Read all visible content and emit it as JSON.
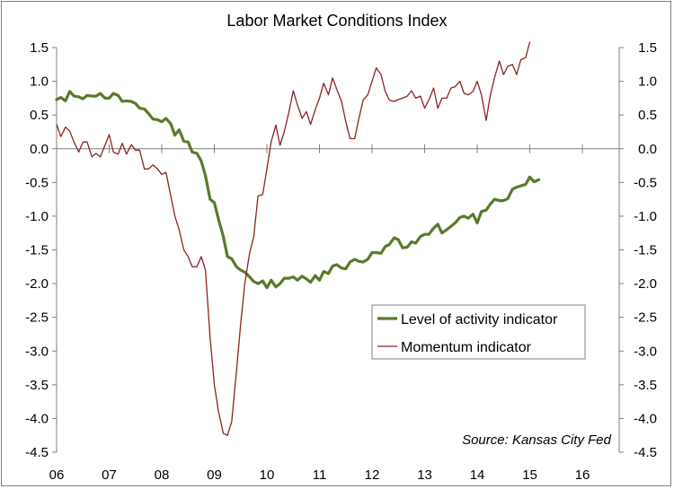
{
  "chart_data": {
    "type": "line",
    "title": "Labor Market Conditions Index",
    "source_note": "Source: Kansas City Fed",
    "xlabel": "",
    "ylabel": "",
    "ylim": [
      -4.5,
      1.5
    ],
    "y_ticks": [
      "1.5",
      "1.0",
      "0.5",
      "0.0",
      "-0.5",
      "-1.0",
      "-1.5",
      "-2.0",
      "-2.5",
      "-3.0",
      "-3.5",
      "-4.0",
      "-4.5"
    ],
    "x_ticks": [
      "06",
      "07",
      "08",
      "09",
      "10",
      "11",
      "12",
      "13",
      "14",
      "15",
      "16"
    ],
    "xlim": [
      2006,
      2016.7
    ],
    "grid": false,
    "legend_position": "lower-right",
    "series": [
      {
        "name": "Level of activity indicator",
        "color": "#5a7a2a",
        "points": [
          [
            2006.0,
            0.73
          ],
          [
            2006.08,
            0.76
          ],
          [
            2006.17,
            0.71
          ],
          [
            2006.25,
            0.85
          ],
          [
            2006.33,
            0.78
          ],
          [
            2006.42,
            0.77
          ],
          [
            2006.5,
            0.74
          ],
          [
            2006.58,
            0.79
          ],
          [
            2006.67,
            0.78
          ],
          [
            2006.75,
            0.78
          ],
          [
            2006.83,
            0.82
          ],
          [
            2006.92,
            0.75
          ],
          [
            2007.0,
            0.75
          ],
          [
            2007.08,
            0.82
          ],
          [
            2007.17,
            0.79
          ],
          [
            2007.25,
            0.7
          ],
          [
            2007.33,
            0.71
          ],
          [
            2007.42,
            0.7
          ],
          [
            2007.5,
            0.67
          ],
          [
            2007.58,
            0.6
          ],
          [
            2007.67,
            0.59
          ],
          [
            2007.75,
            0.52
          ],
          [
            2007.83,
            0.44
          ],
          [
            2007.92,
            0.43
          ],
          [
            2008.0,
            0.4
          ],
          [
            2008.08,
            0.45
          ],
          [
            2008.17,
            0.37
          ],
          [
            2008.25,
            0.2
          ],
          [
            2008.33,
            0.28
          ],
          [
            2008.42,
            0.11
          ],
          [
            2008.5,
            0.1
          ],
          [
            2008.58,
            -0.05
          ],
          [
            2008.67,
            -0.07
          ],
          [
            2008.75,
            -0.18
          ],
          [
            2008.83,
            -0.4
          ],
          [
            2008.92,
            -0.75
          ],
          [
            2009.0,
            -0.8
          ],
          [
            2009.08,
            -1.05
          ],
          [
            2009.17,
            -1.3
          ],
          [
            2009.25,
            -1.6
          ],
          [
            2009.33,
            -1.63
          ],
          [
            2009.42,
            -1.75
          ],
          [
            2009.5,
            -1.8
          ],
          [
            2009.58,
            -1.83
          ],
          [
            2009.67,
            -1.9
          ],
          [
            2009.75,
            -1.97
          ],
          [
            2009.83,
            -2.0
          ],
          [
            2009.92,
            -1.96
          ],
          [
            2010.0,
            -2.06
          ],
          [
            2010.08,
            -1.95
          ],
          [
            2010.17,
            -2.05
          ],
          [
            2010.25,
            -2.0
          ],
          [
            2010.33,
            -1.92
          ],
          [
            2010.42,
            -1.92
          ],
          [
            2010.5,
            -1.9
          ],
          [
            2010.58,
            -1.95
          ],
          [
            2010.67,
            -1.89
          ],
          [
            2010.75,
            -1.93
          ],
          [
            2010.83,
            -1.98
          ],
          [
            2010.92,
            -1.88
          ],
          [
            2011.0,
            -1.95
          ],
          [
            2011.08,
            -1.82
          ],
          [
            2011.17,
            -1.85
          ],
          [
            2011.25,
            -1.74
          ],
          [
            2011.33,
            -1.72
          ],
          [
            2011.42,
            -1.77
          ],
          [
            2011.5,
            -1.78
          ],
          [
            2011.58,
            -1.68
          ],
          [
            2011.67,
            -1.64
          ],
          [
            2011.75,
            -1.67
          ],
          [
            2011.83,
            -1.68
          ],
          [
            2011.92,
            -1.64
          ],
          [
            2012.0,
            -1.54
          ],
          [
            2012.08,
            -1.54
          ],
          [
            2012.17,
            -1.55
          ],
          [
            2012.25,
            -1.45
          ],
          [
            2012.33,
            -1.42
          ],
          [
            2012.42,
            -1.32
          ],
          [
            2012.5,
            -1.35
          ],
          [
            2012.58,
            -1.47
          ],
          [
            2012.67,
            -1.46
          ],
          [
            2012.75,
            -1.38
          ],
          [
            2012.83,
            -1.4
          ],
          [
            2012.92,
            -1.3
          ],
          [
            2013.0,
            -1.27
          ],
          [
            2013.08,
            -1.27
          ],
          [
            2013.17,
            -1.18
          ],
          [
            2013.25,
            -1.12
          ],
          [
            2013.33,
            -1.25
          ],
          [
            2013.42,
            -1.2
          ],
          [
            2013.5,
            -1.15
          ],
          [
            2013.58,
            -1.1
          ],
          [
            2013.67,
            -1.02
          ],
          [
            2013.75,
            -1.0
          ],
          [
            2013.83,
            -1.03
          ],
          [
            2013.92,
            -0.97
          ],
          [
            2014.0,
            -1.1
          ],
          [
            2014.08,
            -0.93
          ],
          [
            2014.17,
            -0.91
          ],
          [
            2014.25,
            -0.82
          ],
          [
            2014.33,
            -0.75
          ],
          [
            2014.42,
            -0.77
          ],
          [
            2014.5,
            -0.77
          ],
          [
            2014.58,
            -0.74
          ],
          [
            2014.67,
            -0.6
          ],
          [
            2014.75,
            -0.57
          ],
          [
            2014.83,
            -0.55
          ],
          [
            2014.92,
            -0.53
          ],
          [
            2015.0,
            -0.42
          ],
          [
            2015.08,
            -0.49
          ],
          [
            2015.17,
            -0.46
          ]
        ]
      },
      {
        "name": "Momentum indicator",
        "color": "#8b2323",
        "points": [
          [
            2006.0,
            0.36
          ],
          [
            2006.08,
            0.18
          ],
          [
            2006.17,
            0.32
          ],
          [
            2006.25,
            0.26
          ],
          [
            2006.33,
            0.1
          ],
          [
            2006.42,
            -0.05
          ],
          [
            2006.5,
            0.1
          ],
          [
            2006.58,
            0.1
          ],
          [
            2006.67,
            -0.12
          ],
          [
            2006.75,
            -0.07
          ],
          [
            2006.83,
            -0.12
          ],
          [
            2006.92,
            0.05
          ],
          [
            2007.0,
            0.21
          ],
          [
            2007.08,
            -0.05
          ],
          [
            2007.17,
            -0.08
          ],
          [
            2007.25,
            0.08
          ],
          [
            2007.33,
            -0.08
          ],
          [
            2007.42,
            0.06
          ],
          [
            2007.5,
            -0.02
          ],
          [
            2007.58,
            -0.02
          ],
          [
            2007.67,
            -0.3
          ],
          [
            2007.75,
            -0.3
          ],
          [
            2007.83,
            -0.24
          ],
          [
            2007.92,
            -0.3
          ],
          [
            2008.0,
            -0.38
          ],
          [
            2008.08,
            -0.35
          ],
          [
            2008.17,
            -0.7
          ],
          [
            2008.25,
            -1.0
          ],
          [
            2008.33,
            -1.2
          ],
          [
            2008.42,
            -1.5
          ],
          [
            2008.5,
            -1.6
          ],
          [
            2008.58,
            -1.75
          ],
          [
            2008.67,
            -1.75
          ],
          [
            2008.75,
            -1.6
          ],
          [
            2008.83,
            -1.8
          ],
          [
            2008.92,
            -2.8
          ],
          [
            2009.0,
            -3.5
          ],
          [
            2009.08,
            -3.9
          ],
          [
            2009.17,
            -4.22
          ],
          [
            2009.25,
            -4.25
          ],
          [
            2009.33,
            -4.05
          ],
          [
            2009.42,
            -3.3
          ],
          [
            2009.5,
            -2.6
          ],
          [
            2009.58,
            -2.0
          ],
          [
            2009.67,
            -1.55
          ],
          [
            2009.75,
            -1.3
          ],
          [
            2009.83,
            -0.7
          ],
          [
            2009.92,
            -0.68
          ],
          [
            2010.0,
            -0.3
          ],
          [
            2010.08,
            0.1
          ],
          [
            2010.17,
            0.35
          ],
          [
            2010.25,
            0.05
          ],
          [
            2010.33,
            0.25
          ],
          [
            2010.42,
            0.55
          ],
          [
            2010.5,
            0.86
          ],
          [
            2010.58,
            0.65
          ],
          [
            2010.67,
            0.45
          ],
          [
            2010.75,
            0.55
          ],
          [
            2010.83,
            0.36
          ],
          [
            2010.92,
            0.58
          ],
          [
            2011.0,
            0.75
          ],
          [
            2011.08,
            0.97
          ],
          [
            2011.17,
            0.8
          ],
          [
            2011.25,
            1.05
          ],
          [
            2011.33,
            0.88
          ],
          [
            2011.42,
            0.7
          ],
          [
            2011.5,
            0.4
          ],
          [
            2011.58,
            0.15
          ],
          [
            2011.67,
            0.15
          ],
          [
            2011.75,
            0.45
          ],
          [
            2011.83,
            0.72
          ],
          [
            2011.92,
            0.8
          ],
          [
            2012.0,
            1.0
          ],
          [
            2012.08,
            1.2
          ],
          [
            2012.17,
            1.1
          ],
          [
            2012.25,
            0.85
          ],
          [
            2012.33,
            0.72
          ],
          [
            2012.42,
            0.7
          ],
          [
            2012.5,
            0.73
          ],
          [
            2012.58,
            0.75
          ],
          [
            2012.67,
            0.78
          ],
          [
            2012.75,
            0.86
          ],
          [
            2012.83,
            0.75
          ],
          [
            2012.92,
            0.78
          ],
          [
            2013.0,
            0.6
          ],
          [
            2013.08,
            0.72
          ],
          [
            2013.17,
            0.9
          ],
          [
            2013.25,
            0.6
          ],
          [
            2013.33,
            0.75
          ],
          [
            2013.42,
            0.75
          ],
          [
            2013.5,
            0.9
          ],
          [
            2013.58,
            0.92
          ],
          [
            2013.67,
            1.0
          ],
          [
            2013.75,
            0.82
          ],
          [
            2013.83,
            0.8
          ],
          [
            2013.92,
            0.85
          ],
          [
            2014.0,
            1.0
          ],
          [
            2014.08,
            0.8
          ],
          [
            2014.17,
            0.42
          ],
          [
            2014.25,
            0.8
          ],
          [
            2014.33,
            1.05
          ],
          [
            2014.42,
            1.3
          ],
          [
            2014.5,
            1.1
          ],
          [
            2014.58,
            1.22
          ],
          [
            2014.67,
            1.25
          ],
          [
            2014.75,
            1.1
          ],
          [
            2014.83,
            1.32
          ],
          [
            2014.92,
            1.35
          ],
          [
            2015.0,
            1.58
          ]
        ]
      }
    ]
  }
}
